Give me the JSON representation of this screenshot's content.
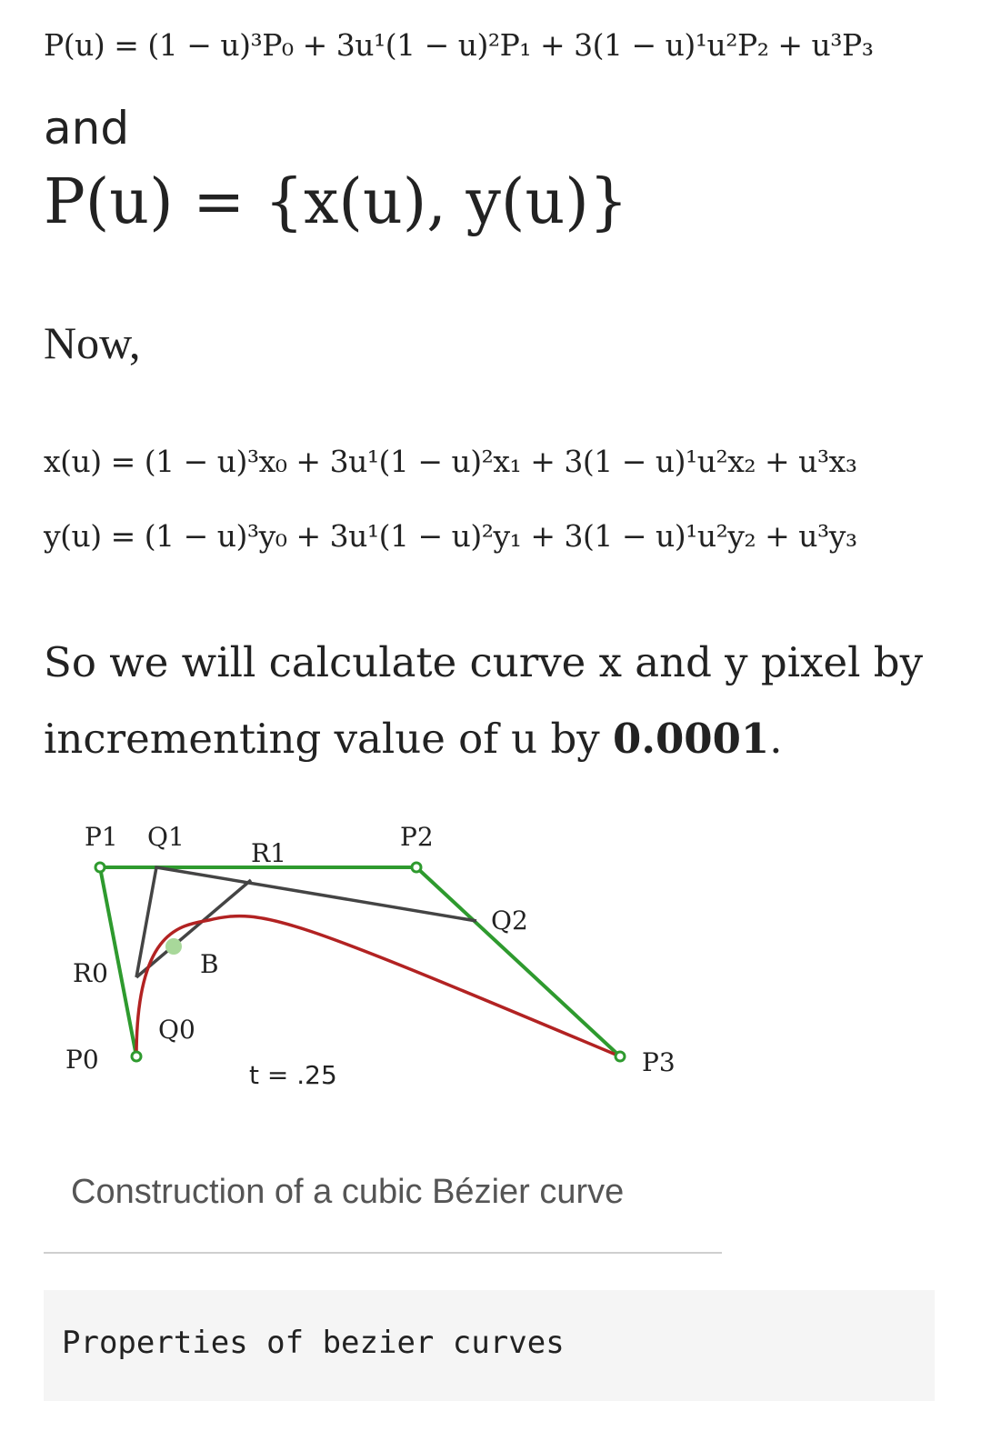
{
  "formulas": {
    "bezier_point": "P(u) = (1 − u)³P₀ + 3u¹(1 − u)²P₁ + 3(1 − u)¹u²P₂ + u³P₃",
    "and_label": "and",
    "point_pair": "P(u) = {x(u), y(u)}",
    "now_label": "Now,",
    "x_equation": "x(u) = (1 − u)³x₀ + 3u¹(1 − u)²x₁ + 3(1 − u)¹u²x₂ + u³x₃",
    "y_equation": "y(u) = (1 − u)³y₀ + 3u¹(1 − u)²y₁ + 3(1 − u)¹u²y₂ + u³y₃"
  },
  "prose": {
    "line1": "So we will calculate curve x and y pixel by",
    "line2_prefix": "incrementing value of u by ",
    "line2_value": "0.0001",
    "line2_suffix": "."
  },
  "figure": {
    "labels": {
      "p0": "P0",
      "p1": "P1",
      "p2": "P2",
      "p3": "P3",
      "q0": "Q0",
      "q1": "Q1",
      "q2": "Q2",
      "r0": "R0",
      "r1": "R1",
      "b": "B",
      "t_value": "t = .25"
    },
    "colors": {
      "control_polygon": "#2e9a2e",
      "construction_lines": "#444444",
      "curve": "#b22222",
      "point_b": "#a8d89a"
    },
    "caption": "Construction of a cubic Bézier curve"
  },
  "code": {
    "heading": "Properties of bezier curves"
  }
}
